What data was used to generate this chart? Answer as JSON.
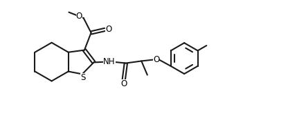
{
  "bg_color": "#ffffff",
  "line_color": "#1a1a1a",
  "line_width": 1.5,
  "figsize": [
    4.16,
    1.87
  ],
  "dpi": 100,
  "fontsize": 8.5,
  "text_color": "#000000",
  "xlim": [
    0.0,
    10.0
  ],
  "ylim": [
    0.0,
    4.8
  ]
}
